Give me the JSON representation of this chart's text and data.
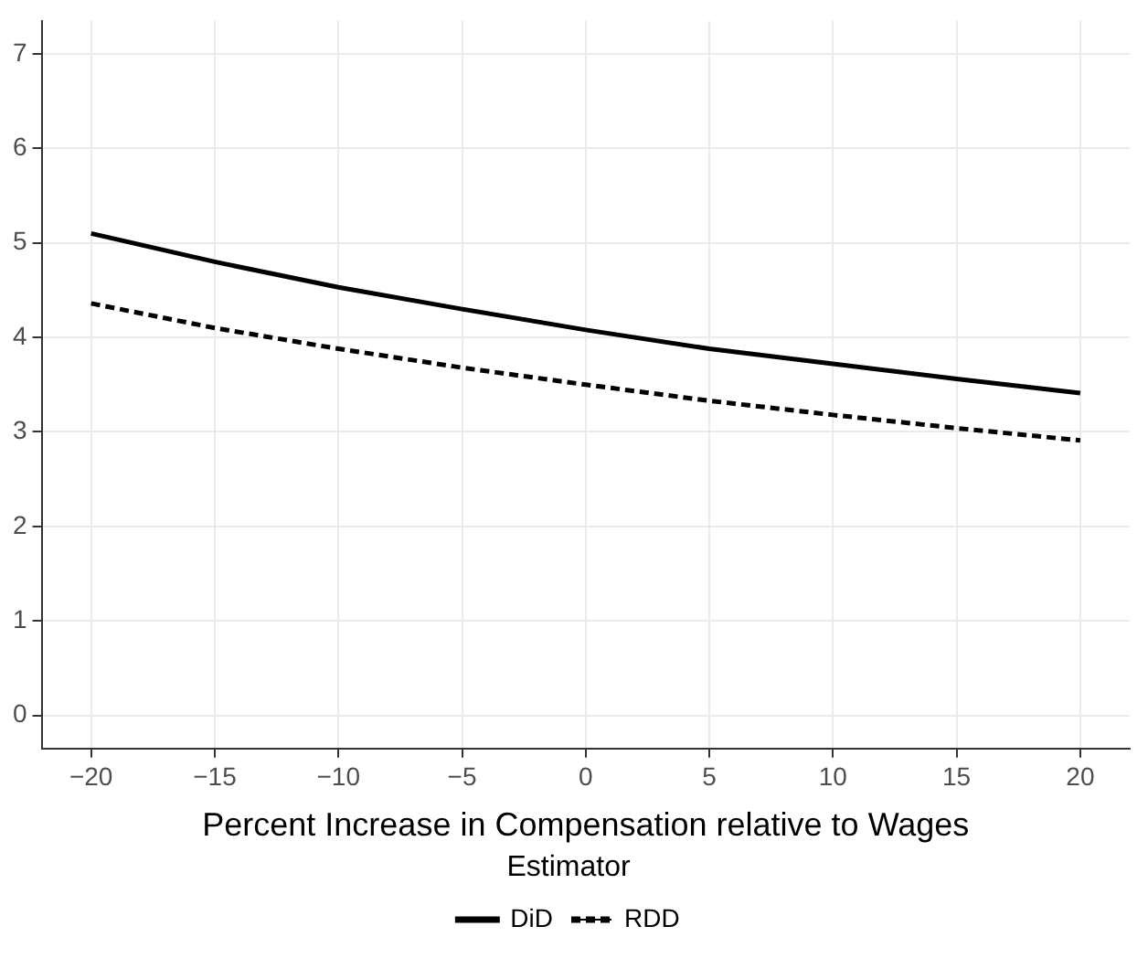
{
  "chart_data": {
    "type": "line",
    "xlabel": "Percent Increase in Compensation relative to Wages",
    "legend_title": "Estimator",
    "legend": "bottom",
    "grid": true,
    "marker": "none",
    "x": [
      -20,
      -15,
      -10,
      -5,
      0,
      5,
      10,
      15,
      20
    ],
    "xlim": [
      -22,
      22
    ],
    "xticks": [
      {
        "value": -20,
        "label": "−20"
      },
      {
        "value": -15,
        "label": "−15"
      },
      {
        "value": -10,
        "label": "−10"
      },
      {
        "value": -5,
        "label": "−5"
      },
      0,
      5,
      10,
      15,
      20
    ],
    "ylim": [
      -0.35,
      7.35
    ],
    "yticks": [
      0,
      1,
      2,
      3,
      4,
      5,
      6,
      7
    ],
    "series": [
      {
        "name": "DiD",
        "color": "#000000",
        "line_style": "solid",
        "values": [
          5.1,
          4.8,
          4.53,
          4.3,
          4.08,
          3.88,
          3.72,
          3.56,
          3.41
        ]
      },
      {
        "name": "RDD",
        "color": "#000000",
        "line_style": "dashed",
        "values": [
          4.36,
          4.1,
          3.88,
          3.68,
          3.5,
          3.33,
          3.18,
          3.04,
          2.91
        ]
      }
    ]
  }
}
